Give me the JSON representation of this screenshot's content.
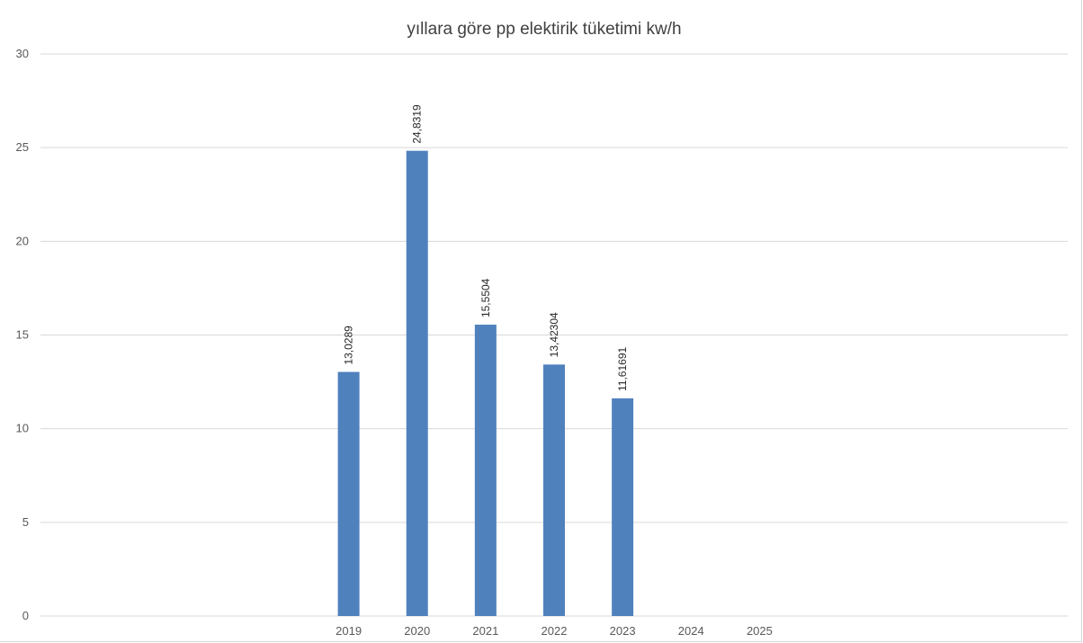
{
  "chart_data": {
    "type": "bar",
    "title": "yıllara göre pp elektirik tüketimi kw/h",
    "xlabel": "",
    "ylabel": "",
    "categories": [
      "",
      "",
      "",
      "",
      "2019",
      "2020",
      "2021",
      "2022",
      "2023",
      "2024",
      "2025",
      "",
      "",
      "",
      ""
    ],
    "values": [
      null,
      null,
      null,
      null,
      13.0289,
      24.8319,
      15.5504,
      13.42304,
      11.61691,
      null,
      null,
      null,
      null,
      null,
      null
    ],
    "data_labels": [
      "",
      "",
      "",
      "",
      "13,0289",
      "24,8319",
      "15,5504",
      "13,42304",
      "11,61691",
      "",
      "",
      "",
      "",
      "",
      ""
    ],
    "ylim": [
      0,
      30
    ],
    "yticks": [
      0,
      5,
      10,
      15,
      20,
      25,
      30
    ],
    "ytick_labels": [
      "0",
      "5",
      "10",
      "15",
      "20",
      "25",
      "30"
    ],
    "grid": true,
    "legend": "none",
    "bar_color": "#4f81bd"
  }
}
